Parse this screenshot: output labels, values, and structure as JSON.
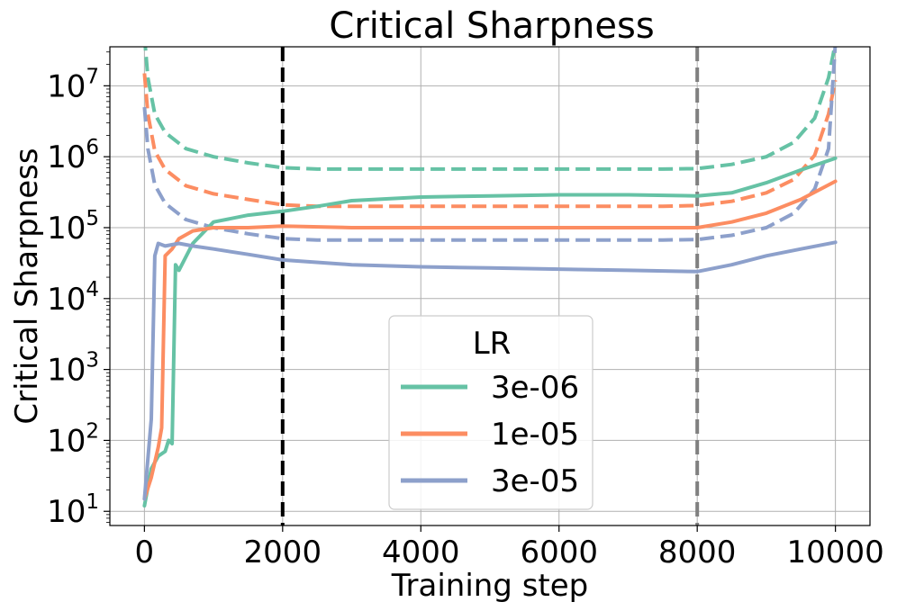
{
  "chart_data": {
    "type": "line",
    "title": "Critical Sharpness",
    "xlabel": "Training step",
    "ylabel": "Critical Sharpness",
    "xlim": [
      -500,
      10500
    ],
    "ylim_log10": [
      0.8,
      7.55
    ],
    "yscale": "log",
    "grid": true,
    "x_ticks": [
      {
        "value": 0,
        "label": "0"
      },
      {
        "value": 2000,
        "label": "2000"
      },
      {
        "value": 4000,
        "label": "4000"
      },
      {
        "value": 6000,
        "label": "6000"
      },
      {
        "value": 8000,
        "label": "8000"
      },
      {
        "value": 10000,
        "label": "10000"
      }
    ],
    "y_ticks": [
      {
        "exp": 1,
        "base": "10",
        "sup": "1"
      },
      {
        "exp": 2,
        "base": "10",
        "sup": "2"
      },
      {
        "exp": 3,
        "base": "10",
        "sup": "3"
      },
      {
        "exp": 4,
        "base": "10",
        "sup": "4"
      },
      {
        "exp": 5,
        "base": "10",
        "sup": "5"
      },
      {
        "exp": 6,
        "base": "10",
        "sup": "6"
      },
      {
        "exp": 7,
        "base": "10",
        "sup": "7"
      }
    ],
    "vlines": [
      {
        "x": 2000,
        "color": "#000000",
        "style": "dashed"
      },
      {
        "x": 8000,
        "color": "#808080",
        "style": "dashed"
      }
    ],
    "legend": {
      "title": "LR",
      "placement": "lower-center",
      "entries": [
        "3e-06",
        "1e-05",
        "3e-05"
      ]
    },
    "series": [
      {
        "name": "3e-06",
        "color": "#66c2a5",
        "x": [
          0,
          100,
          200,
          300,
          350,
          400,
          450,
          500,
          700,
          1000,
          1500,
          2000,
          2500,
          3000,
          4000,
          5000,
          6000,
          7000,
          8000,
          8500,
          9000,
          9500,
          10000
        ],
        "y": [
          12,
          40,
          60,
          70,
          100,
          90,
          30000,
          25000,
          60000,
          120000,
          150000,
          170000,
          200000,
          240000,
          270000,
          280000,
          290000,
          290000,
          280000,
          310000,
          430000,
          650000,
          950000
        ]
      },
      {
        "name": "1e-05",
        "color": "#fc8d62",
        "x": [
          0,
          100,
          200,
          250,
          300,
          400,
          500,
          700,
          1000,
          1500,
          2000,
          3000,
          4000,
          5000,
          6000,
          7000,
          8000,
          8500,
          9000,
          9500,
          10000
        ],
        "y": [
          15,
          30,
          80,
          150,
          40000,
          50000,
          70000,
          90000,
          100000,
          100000,
          105000,
          100000,
          100000,
          100000,
          100000,
          100000,
          100000,
          120000,
          160000,
          250000,
          450000
        ]
      },
      {
        "name": "3e-05",
        "color": "#8da0cb",
        "x": [
          0,
          100,
          150,
          200,
          300,
          500,
          700,
          1000,
          1500,
          2000,
          3000,
          4000,
          5000,
          6000,
          7000,
          8000,
          8500,
          9000,
          9500,
          10000
        ],
        "y": [
          15,
          200,
          40000,
          60000,
          55000,
          60000,
          55000,
          50000,
          42000,
          35000,
          30000,
          28000,
          27000,
          26000,
          25000,
          24000,
          30000,
          40000,
          50000,
          62000
        ]
      }
    ],
    "bounds": [
      {
        "name": "3e-06 bound",
        "color": "#66c2a5",
        "x": [
          0,
          50,
          150,
          300,
          600,
          1000,
          1500,
          2000,
          2500,
          3000,
          5000,
          7000,
          7500,
          8000,
          8500,
          9000,
          9400,
          9700,
          9900,
          10000
        ],
        "y": [
          50000000,
          13000000,
          4000000,
          2200000,
          1300000,
          1000000,
          820000,
          700000,
          670000,
          670000,
          670000,
          670000,
          670000,
          680000,
          780000,
          1000000,
          1600000,
          3500000,
          13000000,
          40000000
        ]
      },
      {
        "name": "1e-05 bound",
        "color": "#fc8d62",
        "x": [
          0,
          50,
          150,
          300,
          600,
          1000,
          1500,
          2000,
          2500,
          3000,
          5000,
          7000,
          7500,
          8000,
          8500,
          9000,
          9400,
          9700,
          9900,
          10000
        ],
        "y": [
          15000000,
          4000000,
          1200000,
          660000,
          390000,
          300000,
          250000,
          210000,
          200000,
          200000,
          200000,
          200000,
          200000,
          205000,
          235000,
          310000,
          480000,
          1050000,
          4000000,
          12000000
        ]
      },
      {
        "name": "3e-05 bound",
        "color": "#8da0cb",
        "x": [
          0,
          50,
          150,
          300,
          600,
          1000,
          1500,
          2000,
          2500,
          3000,
          5000,
          7000,
          7500,
          8000,
          8500,
          9000,
          9400,
          9700,
          9900,
          10000
        ],
        "y": [
          5000000,
          1300000,
          400000,
          220000,
          130000,
          100000,
          82000,
          70000,
          67000,
          67000,
          67000,
          67000,
          67000,
          68000,
          78000,
          100000,
          160000,
          350000,
          1300000,
          40000000
        ]
      }
    ]
  }
}
